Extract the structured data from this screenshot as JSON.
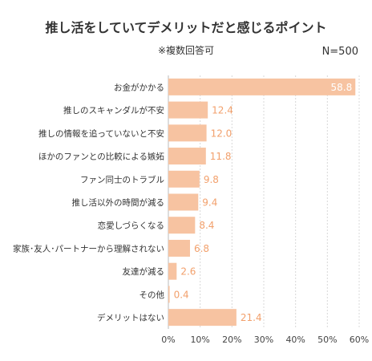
{
  "chart_data": {
    "type": "bar",
    "orientation": "horizontal",
    "title": "推し活をしていてデメリットだと感じるポイント",
    "subtitle": "※複数回答可",
    "sample_size": "N=500",
    "categories": [
      "お金がかかる",
      "推しのスキャンダルが不安",
      "推しの情報を追っていないと不安",
      "ほかのファンとの比較による嫉妬",
      "ファン同士のトラブル",
      "推し活以外の時間が減る",
      "恋愛しづらくなる",
      "家族･友人･パートナーから理解されない",
      "友達が減る",
      "その他",
      "デメリットはない"
    ],
    "values": [
      58.8,
      12.4,
      12.0,
      11.8,
      9.8,
      9.4,
      8.4,
      6.8,
      2.6,
      0.4,
      21.4
    ],
    "value_labels": [
      "58.8",
      "12.4",
      "12.0",
      "11.8",
      "9.8",
      "9.4",
      "8.4",
      "6.8",
      "2.6",
      "0.4",
      "21.4"
    ],
    "xlim": [
      0,
      60
    ],
    "ticks": [
      0,
      10,
      20,
      30,
      40,
      50,
      60
    ],
    "tick_labels": [
      "0%",
      "10%",
      "20%",
      "30%",
      "40%",
      "50%",
      "60%"
    ],
    "grid": true,
    "bar_color": "#f7c3a1",
    "label_color": "#f2a06c",
    "label_inside_color": "#ffffff"
  }
}
